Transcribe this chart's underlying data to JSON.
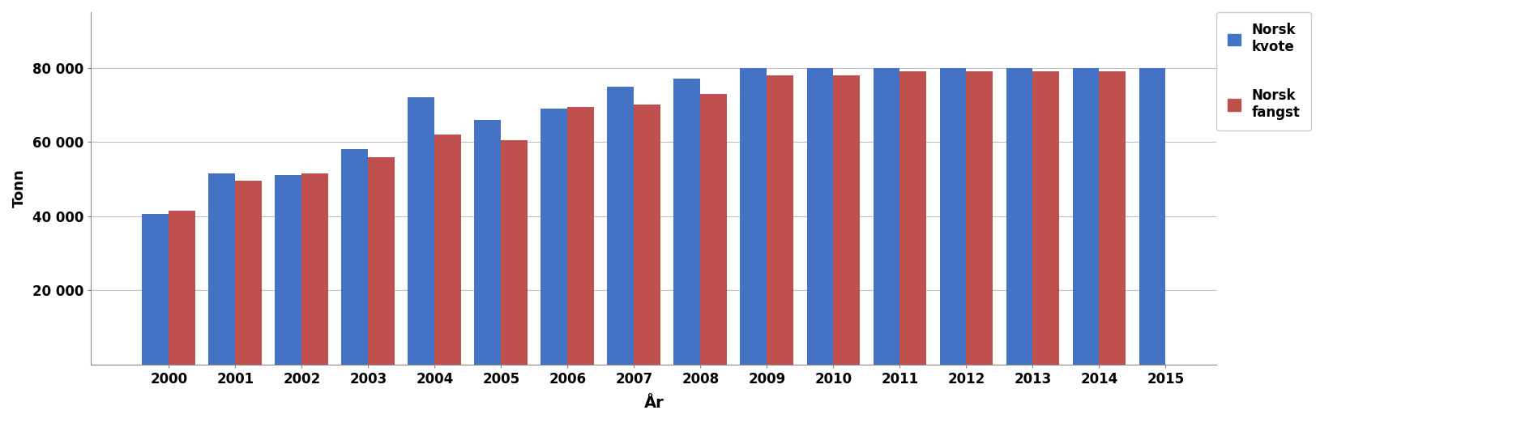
{
  "years": [
    2000,
    2001,
    2002,
    2003,
    2004,
    2005,
    2006,
    2007,
    2008,
    2009,
    2010,
    2011,
    2012,
    2013,
    2014,
    2015
  ],
  "norsk_kvote": [
    40500,
    51500,
    51000,
    58000,
    72000,
    66000,
    69000,
    75000,
    77000,
    80000,
    80000,
    80000,
    80000,
    80000,
    80000,
    80000
  ],
  "norsk_fangst": [
    41500,
    49500,
    51500,
    56000,
    62000,
    60500,
    69500,
    70000,
    73000,
    78000,
    78000,
    79000,
    79000,
    79000,
    79000,
    0
  ],
  "bar_color_blue": "#4472C4",
  "bar_color_red": "#C0504D",
  "ylabel": "Tonn",
  "xlabel": "År",
  "legend_blue": "Norsk\nkvote",
  "legend_red": "Norsk\nfangst",
  "ylim_min": 0,
  "ylim_max": 95000,
  "yticks": [
    20000,
    40000,
    60000,
    80000
  ],
  "ytick_labels": [
    "20 000",
    "40 000",
    "60 000",
    "80 000"
  ],
  "background_color": "#FFFFFF",
  "grid_color": "#C0C0C0"
}
